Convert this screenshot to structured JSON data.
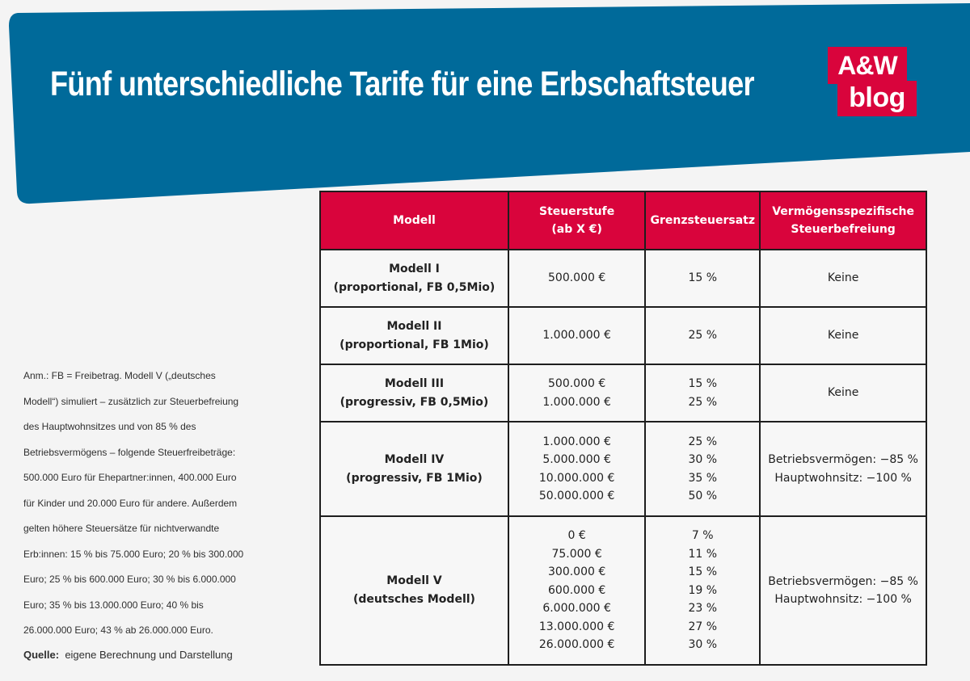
{
  "header": {
    "title": "Fünf unterschiedliche Tarife für eine Erbschaftsteuer",
    "banner_color": "#006a9a",
    "logo": {
      "line1": "A&W",
      "line2": "blog",
      "color": "#d9043c"
    }
  },
  "note": {
    "lines": [
      "Anm.: FB = Freibetrag. Modell V („deutsches",
      "Modell“) simuliert – zusätzlich zur Steuerbefreiung",
      "des Hauptwohnsitzes und von 85 % des",
      "Betriebsvermögens – folgende Steuerfreibeträge:",
      "500.000 Euro für Ehepartner:innen, 400.000 Euro",
      "für Kinder und 20.000 Euro für andere. Außerdem",
      "gelten höhere Steuersätze für nichtverwandte",
      "Erb:innen: 15 % bis 75.000 Euro; 20 % bis 300.000",
      "Euro; 25 % bis 600.000 Euro; 30 % bis 6.000.000",
      "Euro; 35 % bis 13.000.000 Euro; 40 % bis",
      "26.000.000 Euro; 43 % ab 26.000.000 Euro."
    ],
    "source_label": "Quelle:",
    "source_text": "eigene Berechnung und Darstellung"
  },
  "table": {
    "header_color": "#d9043c",
    "headers": [
      {
        "line1": "Modell",
        "line2": ""
      },
      {
        "line1": "Steuerstufe",
        "line2": "(ab X €)"
      },
      {
        "line1": "Grenzsteuersatz",
        "line2": ""
      },
      {
        "line1": "Vermögensspezifische",
        "line2": "Steuerbefreiung"
      }
    ],
    "rows": [
      {
        "model": [
          "Modell I",
          "(proportional, FB 0,5Mio)"
        ],
        "stufen": [
          "500.000 €"
        ],
        "saetze": [
          "15 %"
        ],
        "befreiung": [
          "Keine"
        ]
      },
      {
        "model": [
          "Modell II",
          "(proportional, FB 1Mio)"
        ],
        "stufen": [
          "1.000.000 €"
        ],
        "saetze": [
          "25 %"
        ],
        "befreiung": [
          "Keine"
        ]
      },
      {
        "model": [
          "Modell III",
          "(progressiv, FB 0,5Mio)"
        ],
        "stufen": [
          "500.000 €",
          "1.000.000 €"
        ],
        "saetze": [
          "15 %",
          "25 %"
        ],
        "befreiung": [
          "Keine"
        ]
      },
      {
        "model": [
          "Modell IV",
          "(progressiv, FB 1Mio)"
        ],
        "stufen": [
          "1.000.000 €",
          "5.000.000 €",
          "10.000.000 €",
          "50.000.000 €"
        ],
        "saetze": [
          "25 %",
          "30 %",
          "35 %",
          "50 %"
        ],
        "befreiung": [
          "Betriebsvermögen: −85 %",
          "Hauptwohnsitz: −100 %"
        ]
      },
      {
        "model": [
          "Modell V",
          "(deutsches Modell)"
        ],
        "stufen": [
          "0 €",
          "75.000 €",
          "300.000 €",
          "600.000 €",
          "6.000.000 €",
          "13.000.000 €",
          "26.000.000 €"
        ],
        "saetze": [
          "7 %",
          "11 %",
          "15 %",
          "19 %",
          "23 %",
          "27 %",
          "30 %"
        ],
        "befreiung": [
          "Betriebsvermögen: −85 %",
          "Hauptwohnsitz: −100 %"
        ]
      }
    ]
  }
}
